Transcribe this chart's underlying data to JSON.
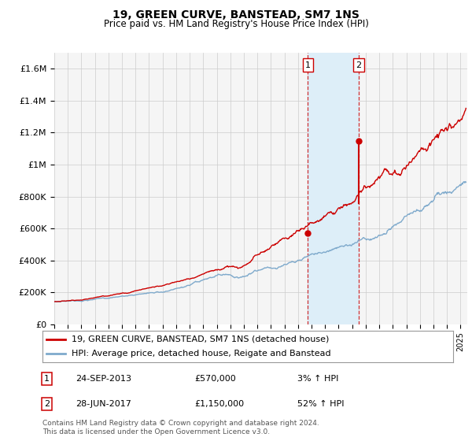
{
  "title": "19, GREEN CURVE, BANSTEAD, SM7 1NS",
  "subtitle": "Price paid vs. HM Land Registry's House Price Index (HPI)",
  "ylim": [
    0,
    1700000
  ],
  "yticks": [
    0,
    200000,
    400000,
    600000,
    800000,
    1000000,
    1200000,
    1400000,
    1600000
  ],
  "ytick_labels": [
    "£0",
    "£200K",
    "£400K",
    "£600K",
    "£800K",
    "£1M",
    "£1.2M",
    "£1.4M",
    "£1.6M"
  ],
  "xlim_start": 1995.0,
  "xlim_end": 2025.5,
  "transaction1_x": 2013.73,
  "transaction1_y": 570000,
  "transaction2_x": 2017.49,
  "transaction2_y": 1150000,
  "transaction1_label": "1",
  "transaction2_label": "2",
  "shade_start": 2013.73,
  "shade_end": 2017.49,
  "legend_line1": "19, GREEN CURVE, BANSTEAD, SM7 1NS (detached house)",
  "legend_line2": "HPI: Average price, detached house, Reigate and Banstead",
  "annotation1_date": "24-SEP-2013",
  "annotation1_price": "£570,000",
  "annotation1_hpi": "3% ↑ HPI",
  "annotation2_date": "28-JUN-2017",
  "annotation2_price": "£1,150,000",
  "annotation2_hpi": "52% ↑ HPI",
  "footer": "Contains HM Land Registry data © Crown copyright and database right 2024.\nThis data is licensed under the Open Government Licence v3.0.",
  "line_color_red": "#cc0000",
  "line_color_blue": "#7faacc",
  "shade_color": "#ddeef8",
  "background_color": "#f5f5f5",
  "grid_color": "#cccccc"
}
